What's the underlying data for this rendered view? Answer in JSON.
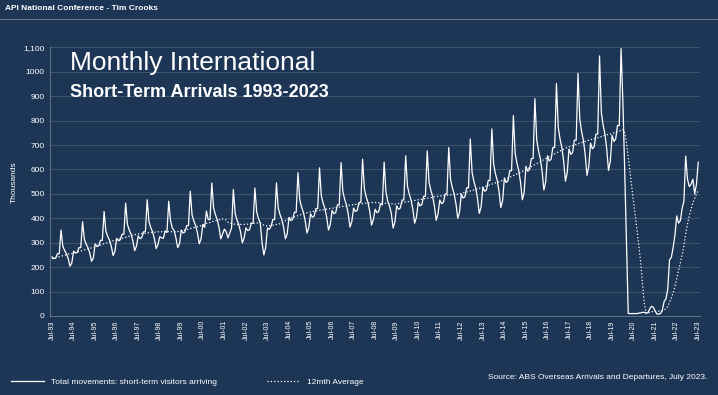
{
  "chart_data": {
    "type": "line",
    "header": "API National Conference - Tim Crooks",
    "title": "Monthly International",
    "subtitle": "Short-Term Arrivals 1993-2023",
    "y_label": "Thousands",
    "source": "Source: ABS Overseas Arrivals and Departures, July 2023.",
    "grid": true,
    "legend": "lower left",
    "ylim": [
      0,
      1100
    ],
    "yticks": [
      0,
      100,
      200,
      300,
      400,
      500,
      600,
      700,
      800,
      900,
      1000,
      {
        "value": 1100,
        "label": "1,100"
      }
    ],
    "categories": [
      "Jul-93",
      null,
      null,
      null,
      null,
      null,
      null,
      null,
      null,
      null,
      null,
      null,
      "Jul-94",
      null,
      null,
      null,
      null,
      null,
      null,
      null,
      null,
      null,
      null,
      null,
      "Jul-95",
      null,
      null,
      null,
      null,
      null,
      null,
      null,
      null,
      null,
      null,
      null,
      "Jul-96",
      null,
      null,
      null,
      null,
      null,
      null,
      null,
      null,
      null,
      null,
      null,
      "Jul-97",
      null,
      null,
      null,
      null,
      null,
      null,
      null,
      null,
      null,
      null,
      null,
      "Jul-98",
      null,
      null,
      null,
      null,
      null,
      null,
      null,
      null,
      null,
      null,
      null,
      "Jul-99",
      null,
      null,
      null,
      null,
      null,
      null,
      null,
      null,
      null,
      null,
      null,
      "Jul-00",
      null,
      null,
      null,
      null,
      null,
      null,
      null,
      null,
      null,
      null,
      null,
      "Jul-01",
      null,
      null,
      null,
      null,
      null,
      null,
      null,
      null,
      null,
      null,
      null,
      "Jul-02",
      null,
      null,
      null,
      null,
      null,
      null,
      null,
      null,
      null,
      null,
      null,
      "Jul-03",
      null,
      null,
      null,
      null,
      null,
      null,
      null,
      null,
      null,
      null,
      null,
      "Jul-04",
      null,
      null,
      null,
      null,
      null,
      null,
      null,
      null,
      null,
      null,
      null,
      "Jul-05",
      null,
      null,
      null,
      null,
      null,
      null,
      null,
      null,
      null,
      null,
      null,
      "Jul-06",
      null,
      null,
      null,
      null,
      null,
      null,
      null,
      null,
      null,
      null,
      null,
      "Jul-07",
      null,
      null,
      null,
      null,
      null,
      null,
      null,
      null,
      null,
      null,
      null,
      "Jul-08",
      null,
      null,
      null,
      null,
      null,
      null,
      null,
      null,
      null,
      null,
      null,
      "Jul-09",
      null,
      null,
      null,
      null,
      null,
      null,
      null,
      null,
      null,
      null,
      null,
      "Jul-10",
      null,
      null,
      null,
      null,
      null,
      null,
      null,
      null,
      null,
      null,
      null,
      "Jul-11",
      null,
      null,
      null,
      null,
      null,
      null,
      null,
      null,
      null,
      null,
      null,
      "Jul-12",
      null,
      null,
      null,
      null,
      null,
      null,
      null,
      null,
      null,
      null,
      null,
      "Jul-13",
      null,
      null,
      null,
      null,
      null,
      null,
      null,
      null,
      null,
      null,
      null,
      "Jul-14",
      null,
      null,
      null,
      null,
      null,
      null,
      null,
      null,
      null,
      null,
      null,
      "Jul-15",
      null,
      null,
      null,
      null,
      null,
      null,
      null,
      null,
      null,
      null,
      null,
      "Jul-16",
      null,
      null,
      null,
      null,
      null,
      null,
      null,
      null,
      null,
      null,
      null,
      "Jul-17",
      null,
      null,
      null,
      null,
      null,
      null,
      null,
      null,
      null,
      null,
      null,
      "Jul-18",
      null,
      null,
      null,
      null,
      null,
      null,
      null,
      null,
      null,
      null,
      null,
      "Jul-19",
      null,
      null,
      null,
      null,
      null,
      null,
      null,
      null,
      null,
      null,
      null,
      "Jul-20",
      null,
      null,
      null,
      null,
      null,
      null,
      null,
      null,
      null,
      null,
      null,
      "Jul-21",
      null,
      null,
      null,
      null,
      null,
      null,
      null,
      null,
      null,
      null,
      null,
      "Jul-22",
      null,
      null,
      null,
      null,
      null,
      null,
      null,
      null,
      null,
      null,
      null,
      "Jul-23"
    ],
    "series": [
      {
        "name": "Total movements: short-term visitors arriving",
        "color": "#ffffff",
        "line_style": "solid",
        "values": [
          242,
          235,
          237,
          255,
          255,
          352,
          286,
          268,
          255,
          235,
          204,
          217,
          266,
          258,
          260,
          280,
          280,
          386,
          314,
          294,
          280,
          258,
          224,
          238,
          295,
          285,
          288,
          310,
          310,
          428,
          347,
          326,
          310,
          285,
          248,
          264,
          318,
          308,
          312,
          335,
          335,
          462,
          375,
          352,
          335,
          308,
          268,
          285,
          328,
          317,
          321,
          345,
          345,
          476,
          386,
          362,
          345,
          317,
          276,
          293,
          325,
          320,
          318,
          348,
          342,
          470,
          390,
          360,
          350,
          320,
          280,
          295,
          352,
          340,
          344,
          370,
          370,
          511,
          414,
          389,
          370,
          340,
          296,
          315,
          375,
          363,
          430,
          395,
          395,
          545,
          442,
          415,
          395,
          363,
          316,
          336,
          356,
          345,
          320,
          340,
          360,
          518,
          420,
          394,
          375,
          345,
          300,
          319,
          361,
          350,
          353,
          380,
          380,
          524,
          426,
          399,
          380,
          300,
          250,
          280,
          360,
          355,
          367,
          395,
          395,
          545,
          442,
          415,
          395,
          363,
          316,
          336,
          404,
          391,
          395,
          425,
          425,
          587,
          476,
          446,
          425,
          391,
          340,
          361,
          418,
          405,
          409,
          440,
          440,
          607,
          493,
          462,
          440,
          405,
          352,
          374,
          432,
          419,
          423,
          455,
          455,
          628,
          510,
          478,
          455,
          419,
          364,
          387,
          442,
          428,
          432,
          465,
          465,
          642,
          521,
          488,
          465,
          428,
          372,
          395,
          437,
          423,
          428,
          460,
          455,
          630,
          510,
          470,
          450,
          420,
          360,
          385,
          451,
          437,
          442,
          475,
          475,
          656,
          532,
          499,
          475,
          437,
          380,
          404,
          466,
          451,
          456,
          490,
          490,
          676,
          549,
          515,
          490,
          451,
          392,
          417,
          475,
          460,
          465,
          500,
          500,
          690,
          560,
          525,
          500,
          460,
          400,
          425,
          499,
          483,
          488,
          525,
          525,
          725,
          588,
          551,
          525,
          483,
          420,
          446,
          527,
          511,
          516,
          555,
          555,
          766,
          622,
          583,
          555,
          511,
          444,
          472,
          565,
          547,
          553,
          595,
          595,
          821,
          666,
          625,
          595,
          547,
          476,
          506,
          613,
          593,
          600,
          645,
          645,
          890,
          722,
          677,
          645,
          593,
          516,
          548,
          656,
          635,
          642,
          690,
          690,
          952,
          773,
          725,
          690,
          635,
          552,
          587,
          684,
          662,
          670,
          720,
          720,
          994,
          806,
          756,
          720,
          662,
          576,
          612,
          708,
          685,
          693,
          745,
          745,
          1065,
          834,
          782,
          745,
          685,
          596,
          633,
          740,
          715,
          725,
          780,
          780,
          1095,
          880,
          600,
          300,
          10,
          10,
          10,
          10,
          10,
          10,
          12,
          13,
          15,
          15,
          12,
          14,
          30,
          40,
          35,
          20,
          8,
          8,
          10,
          25,
          60,
          70,
          110,
          230,
          240,
          280,
          330,
          410,
          380,
          390,
          440,
          470,
          655,
          560,
          530,
          540,
          560,
          500,
          540,
          630
        ]
      },
      {
        "name": "12mth Average",
        "color": "#ffffff",
        "line_style": "dotted",
        "values": [
          235,
          237,
          239,
          241,
          243,
          245,
          247,
          249,
          251,
          253,
          255,
          256,
          258,
          260,
          262,
          264,
          266,
          268,
          271,
          273,
          275,
          277,
          279,
          281,
          283,
          286,
          288,
          291,
          293,
          296,
          298,
          301,
          303,
          306,
          308,
          310,
          312,
          314,
          316,
          318,
          320,
          322,
          325,
          327,
          329,
          331,
          333,
          335,
          336,
          337,
          338,
          338,
          339,
          340,
          341,
          342,
          343,
          343,
          344,
          345,
          345,
          345,
          346,
          346,
          346,
          346,
          345,
          345,
          345,
          346,
          346,
          346,
          348,
          350,
          352,
          354,
          356,
          358,
          360,
          362,
          364,
          366,
          368,
          370,
          372,
          374,
          379,
          381,
          383,
          386,
          388,
          390,
          392,
          394,
          396,
          397,
          395,
          393,
          384,
          380,
          379,
          377,
          376,
          375,
          375,
          375,
          375,
          375,
          375,
          376,
          377,
          379,
          380,
          380,
          381,
          381,
          381,
          376,
          372,
          369,
          369,
          370,
          371,
          372,
          373,
          375,
          376,
          378,
          380,
          385,
          391,
          395,
          398,
          401,
          403,
          406,
          408,
          411,
          414,
          416,
          419,
          421,
          423,
          425,
          426,
          428,
          429,
          430,
          431,
          433,
          434,
          435,
          436,
          438,
          439,
          440,
          441,
          443,
          444,
          445,
          446,
          448,
          449,
          450,
          451,
          453,
          454,
          455,
          456,
          457,
          457,
          458,
          459,
          460,
          461,
          462,
          462,
          463,
          464,
          465,
          465,
          464,
          464,
          464,
          463,
          462,
          461,
          461,
          460,
          460,
          459,
          458,
          460,
          461,
          462,
          463,
          465,
          467,
          468,
          469,
          471,
          472,
          473,
          475,
          476,
          477,
          478,
          480,
          481,
          482,
          484,
          485,
          486,
          488,
          489,
          490,
          491,
          492,
          493,
          493,
          494,
          495,
          496,
          497,
          498,
          498,
          499,
          500,
          502,
          504,
          506,
          508,
          510,
          512,
          514,
          516,
          518,
          520,
          523,
          525,
          527,
          530,
          532,
          535,
          537,
          540,
          542,
          545,
          547,
          550,
          552,
          555,
          558,
          562,
          565,
          568,
          572,
          575,
          578,
          582,
          585,
          588,
          592,
          595,
          599,
          603,
          608,
          612,
          616,
          620,
          624,
          628,
          632,
          636,
          641,
          645,
          649,
          653,
          657,
          660,
          664,
          668,
          672,
          676,
          679,
          683,
          687,
          690,
          693,
          695,
          698,
          700,
          703,
          705,
          708,
          710,
          713,
          715,
          718,
          720,
          722,
          724,
          726,
          728,
          730,
          732,
          735,
          738,
          740,
          742,
          744,
          745,
          748,
          750,
          752,
          755,
          758,
          760,
          764,
          750,
          710,
          650,
          590,
          525,
          465,
          405,
          345,
          280,
          215,
          125,
          50,
          10,
          13,
          15,
          17,
          19,
          20,
          20,
          20,
          20,
          21,
          25,
          30,
          38,
          56,
          74,
          95,
          120,
          152,
          183,
          215,
          250,
          287,
          336,
          376,
          411,
          437,
          464,
          482,
          499,
          517
        ]
      }
    ]
  }
}
